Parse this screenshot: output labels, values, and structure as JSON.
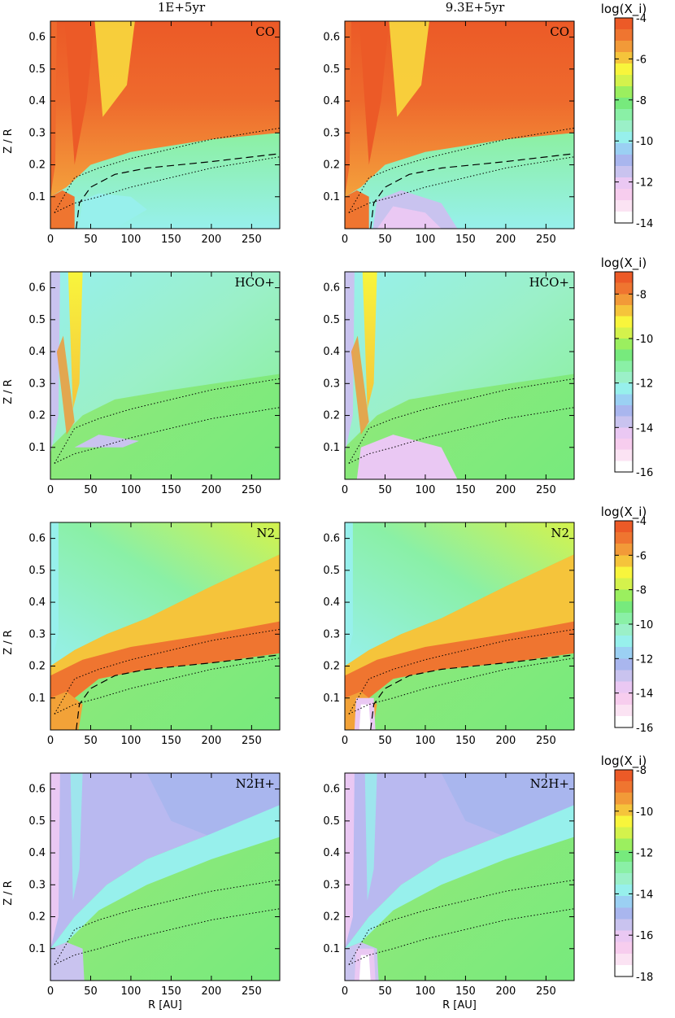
{
  "column_titles": [
    "1E+5yr",
    "9.3E+5yr"
  ],
  "colorbar_title": "log(X_i)",
  "colorbar_palette": [
    "#ffffff",
    "#fbe3f3",
    "#f7cdee",
    "#eac8f3",
    "#c9c3ef",
    "#a9b6ee",
    "#9bd0f3",
    "#97f0ec",
    "#9bf0c8",
    "#8af0a6",
    "#77ea7d",
    "#9bef5f",
    "#d4f24c",
    "#f8f53c",
    "#f5c43b",
    "#f29a38",
    "#ef7530",
    "#ec5a27"
  ],
  "chart_data": [
    {
      "type": "heatmap",
      "species": "CO",
      "time": "1E+5yr",
      "xlabel": "",
      "ylabel": "Z / R",
      "xlim": [
        0,
        285
      ],
      "ylim": [
        0,
        0.65
      ],
      "xticks": [
        0,
        50,
        100,
        150,
        200,
        250
      ],
      "yticks": [
        0.1,
        0.2,
        0.3,
        0.4,
        0.5,
        0.6
      ],
      "colorbar": {
        "min": -14,
        "max": -4,
        "ticks": [
          -4,
          -6,
          -8,
          -10,
          -12,
          -14
        ]
      },
      "contours": {
        "dotted": [
          [
            [
              5,
              0.05
            ],
            [
              30,
              0.16
            ],
            [
              60,
              0.19
            ],
            [
              100,
              0.22
            ],
            [
              150,
              0.25
            ],
            [
              200,
              0.28
            ],
            [
              285,
              0.315
            ]
          ],
          [
            [
              5,
              0.05
            ],
            [
              30,
              0.08
            ],
            [
              60,
              0.1
            ],
            [
              100,
              0.13
            ],
            [
              150,
              0.16
            ],
            [
              200,
              0.19
            ],
            [
              285,
              0.225
            ]
          ]
        ],
        "dashed": [
          [
            [
              32,
              0.0
            ],
            [
              36,
              0.08
            ],
            [
              50,
              0.13
            ],
            [
              80,
              0.17
            ],
            [
              120,
              0.19
            ],
            [
              200,
              0.21
            ],
            [
              285,
              0.235
            ]
          ]
        ]
      }
    },
    {
      "type": "heatmap",
      "species": "CO",
      "time": "9.3E+5yr",
      "xlabel": "",
      "ylabel": "",
      "xlim": [
        0,
        285
      ],
      "ylim": [
        0,
        0.65
      ],
      "xticks": [
        0,
        50,
        100,
        150,
        200,
        250
      ],
      "yticks": [
        0.1,
        0.2,
        0.3,
        0.4,
        0.5,
        0.6
      ],
      "colorbar": {
        "min": -14,
        "max": -4,
        "ticks": [
          -4,
          -6,
          -8,
          -10,
          -12,
          -14
        ]
      },
      "contours": {
        "dotted": [
          [
            [
              5,
              0.05
            ],
            [
              30,
              0.16
            ],
            [
              60,
              0.19
            ],
            [
              100,
              0.22
            ],
            [
              150,
              0.25
            ],
            [
              200,
              0.28
            ],
            [
              285,
              0.315
            ]
          ],
          [
            [
              5,
              0.05
            ],
            [
              30,
              0.08
            ],
            [
              60,
              0.1
            ],
            [
              100,
              0.13
            ],
            [
              150,
              0.16
            ],
            [
              200,
              0.19
            ],
            [
              285,
              0.225
            ]
          ]
        ],
        "dashed": [
          [
            [
              32,
              0.0
            ],
            [
              36,
              0.08
            ],
            [
              50,
              0.13
            ],
            [
              80,
              0.17
            ],
            [
              120,
              0.19
            ],
            [
              200,
              0.21
            ],
            [
              285,
              0.235
            ]
          ]
        ]
      }
    },
    {
      "type": "heatmap",
      "species": "HCO+",
      "time": "1E+5yr",
      "xlabel": "",
      "ylabel": "Z / R",
      "xlim": [
        0,
        285
      ],
      "ylim": [
        0,
        0.65
      ],
      "xticks": [
        0,
        50,
        100,
        150,
        200,
        250
      ],
      "yticks": [
        0.1,
        0.2,
        0.3,
        0.4,
        0.5,
        0.6
      ],
      "colorbar": {
        "min": -16,
        "max": -7,
        "ticks": [
          -8,
          -10,
          -12,
          -14,
          -16
        ]
      },
      "contours": {
        "dotted": [
          [
            [
              5,
              0.05
            ],
            [
              30,
              0.16
            ],
            [
              60,
              0.19
            ],
            [
              100,
              0.22
            ],
            [
              150,
              0.25
            ],
            [
              200,
              0.28
            ],
            [
              285,
              0.315
            ]
          ],
          [
            [
              5,
              0.05
            ],
            [
              30,
              0.08
            ],
            [
              60,
              0.1
            ],
            [
              100,
              0.13
            ],
            [
              150,
              0.16
            ],
            [
              200,
              0.19
            ],
            [
              285,
              0.225
            ]
          ]
        ],
        "dashed": []
      }
    },
    {
      "type": "heatmap",
      "species": "HCO+",
      "time": "9.3E+5yr",
      "xlabel": "",
      "ylabel": "",
      "xlim": [
        0,
        285
      ],
      "ylim": [
        0,
        0.65
      ],
      "xticks": [
        0,
        50,
        100,
        150,
        200,
        250
      ],
      "yticks": [
        0.1,
        0.2,
        0.3,
        0.4,
        0.5,
        0.6
      ],
      "colorbar": {
        "min": -16,
        "max": -7,
        "ticks": [
          -8,
          -10,
          -12,
          -14,
          -16
        ]
      },
      "contours": {
        "dotted": [
          [
            [
              5,
              0.05
            ],
            [
              30,
              0.16
            ],
            [
              60,
              0.19
            ],
            [
              100,
              0.22
            ],
            [
              150,
              0.25
            ],
            [
              200,
              0.28
            ],
            [
              285,
              0.315
            ]
          ],
          [
            [
              5,
              0.05
            ],
            [
              30,
              0.08
            ],
            [
              60,
              0.1
            ],
            [
              100,
              0.13
            ],
            [
              150,
              0.16
            ],
            [
              200,
              0.19
            ],
            [
              285,
              0.225
            ]
          ]
        ],
        "dashed": []
      }
    },
    {
      "type": "heatmap",
      "species": "N2",
      "time": "1E+5yr",
      "xlabel": "",
      "ylabel": "Z / R",
      "xlim": [
        0,
        285
      ],
      "ylim": [
        0,
        0.65
      ],
      "xticks": [
        0,
        50,
        100,
        150,
        200,
        250
      ],
      "yticks": [
        0.1,
        0.2,
        0.3,
        0.4,
        0.5,
        0.6
      ],
      "colorbar": {
        "min": -16,
        "max": -4,
        "ticks": [
          -4,
          -6,
          -8,
          -10,
          -12,
          -14,
          -16
        ]
      },
      "contours": {
        "dotted": [
          [
            [
              5,
              0.05
            ],
            [
              30,
              0.16
            ],
            [
              60,
              0.19
            ],
            [
              100,
              0.22
            ],
            [
              150,
              0.25
            ],
            [
              200,
              0.28
            ],
            [
              285,
              0.315
            ]
          ],
          [
            [
              5,
              0.05
            ],
            [
              30,
              0.08
            ],
            [
              60,
              0.1
            ],
            [
              100,
              0.13
            ],
            [
              150,
              0.16
            ],
            [
              200,
              0.19
            ],
            [
              285,
              0.225
            ]
          ]
        ],
        "dashed": [
          [
            [
              32,
              0.0
            ],
            [
              36,
              0.08
            ],
            [
              50,
              0.13
            ],
            [
              80,
              0.17
            ],
            [
              120,
              0.19
            ],
            [
              200,
              0.21
            ],
            [
              285,
              0.235
            ]
          ]
        ]
      }
    },
    {
      "type": "heatmap",
      "species": "N2",
      "time": "9.3E+5yr",
      "xlabel": "",
      "ylabel": "",
      "xlim": [
        0,
        285
      ],
      "ylim": [
        0,
        0.65
      ],
      "xticks": [
        0,
        50,
        100,
        150,
        200,
        250
      ],
      "yticks": [
        0.1,
        0.2,
        0.3,
        0.4,
        0.5,
        0.6
      ],
      "colorbar": {
        "min": -16,
        "max": -4,
        "ticks": [
          -4,
          -6,
          -8,
          -10,
          -12,
          -14,
          -16
        ]
      },
      "contours": {
        "dotted": [
          [
            [
              5,
              0.05
            ],
            [
              30,
              0.16
            ],
            [
              60,
              0.19
            ],
            [
              100,
              0.22
            ],
            [
              150,
              0.25
            ],
            [
              200,
              0.28
            ],
            [
              285,
              0.315
            ]
          ],
          [
            [
              5,
              0.05
            ],
            [
              30,
              0.08
            ],
            [
              60,
              0.1
            ],
            [
              100,
              0.13
            ],
            [
              150,
              0.16
            ],
            [
              200,
              0.19
            ],
            [
              285,
              0.225
            ]
          ]
        ],
        "dashed": [
          [
            [
              32,
              0.0
            ],
            [
              36,
              0.08
            ],
            [
              50,
              0.13
            ],
            [
              80,
              0.17
            ],
            [
              120,
              0.19
            ],
            [
              200,
              0.21
            ],
            [
              285,
              0.235
            ]
          ]
        ]
      }
    },
    {
      "type": "heatmap",
      "species": "N2H+",
      "time": "1E+5yr",
      "xlabel": "R [AU]",
      "ylabel": "Z / R",
      "xlim": [
        0,
        285
      ],
      "ylim": [
        0,
        0.65
      ],
      "xticks": [
        0,
        50,
        100,
        150,
        200,
        250
      ],
      "yticks": [
        0.1,
        0.2,
        0.3,
        0.4,
        0.5,
        0.6
      ],
      "colorbar": {
        "min": -18,
        "max": -8,
        "ticks": [
          -8,
          -10,
          -12,
          -14,
          -16,
          -18
        ]
      },
      "contours": {
        "dotted": [
          [
            [
              5,
              0.05
            ],
            [
              30,
              0.16
            ],
            [
              60,
              0.19
            ],
            [
              100,
              0.22
            ],
            [
              150,
              0.25
            ],
            [
              200,
              0.28
            ],
            [
              285,
              0.315
            ]
          ],
          [
            [
              5,
              0.05
            ],
            [
              30,
              0.08
            ],
            [
              60,
              0.1
            ],
            [
              100,
              0.13
            ],
            [
              150,
              0.16
            ],
            [
              200,
              0.19
            ],
            [
              285,
              0.225
            ]
          ]
        ],
        "dashed": []
      }
    },
    {
      "type": "heatmap",
      "species": "N2H+",
      "time": "9.3E+5yr",
      "xlabel": "R [AU]",
      "ylabel": "",
      "xlim": [
        0,
        285
      ],
      "ylim": [
        0,
        0.65
      ],
      "xticks": [
        0,
        50,
        100,
        150,
        200,
        250
      ],
      "yticks": [
        0.1,
        0.2,
        0.3,
        0.4,
        0.5,
        0.6
      ],
      "colorbar": {
        "min": -18,
        "max": -8,
        "ticks": [
          -8,
          -10,
          -12,
          -14,
          -16,
          -18
        ]
      },
      "contours": {
        "dotted": [
          [
            [
              5,
              0.05
            ],
            [
              30,
              0.16
            ],
            [
              60,
              0.19
            ],
            [
              100,
              0.22
            ],
            [
              150,
              0.25
            ],
            [
              200,
              0.28
            ],
            [
              285,
              0.315
            ]
          ],
          [
            [
              5,
              0.05
            ],
            [
              30,
              0.08
            ],
            [
              60,
              0.1
            ],
            [
              100,
              0.13
            ],
            [
              150,
              0.16
            ],
            [
              200,
              0.19
            ],
            [
              285,
              0.225
            ]
          ]
        ],
        "dashed": []
      }
    }
  ]
}
